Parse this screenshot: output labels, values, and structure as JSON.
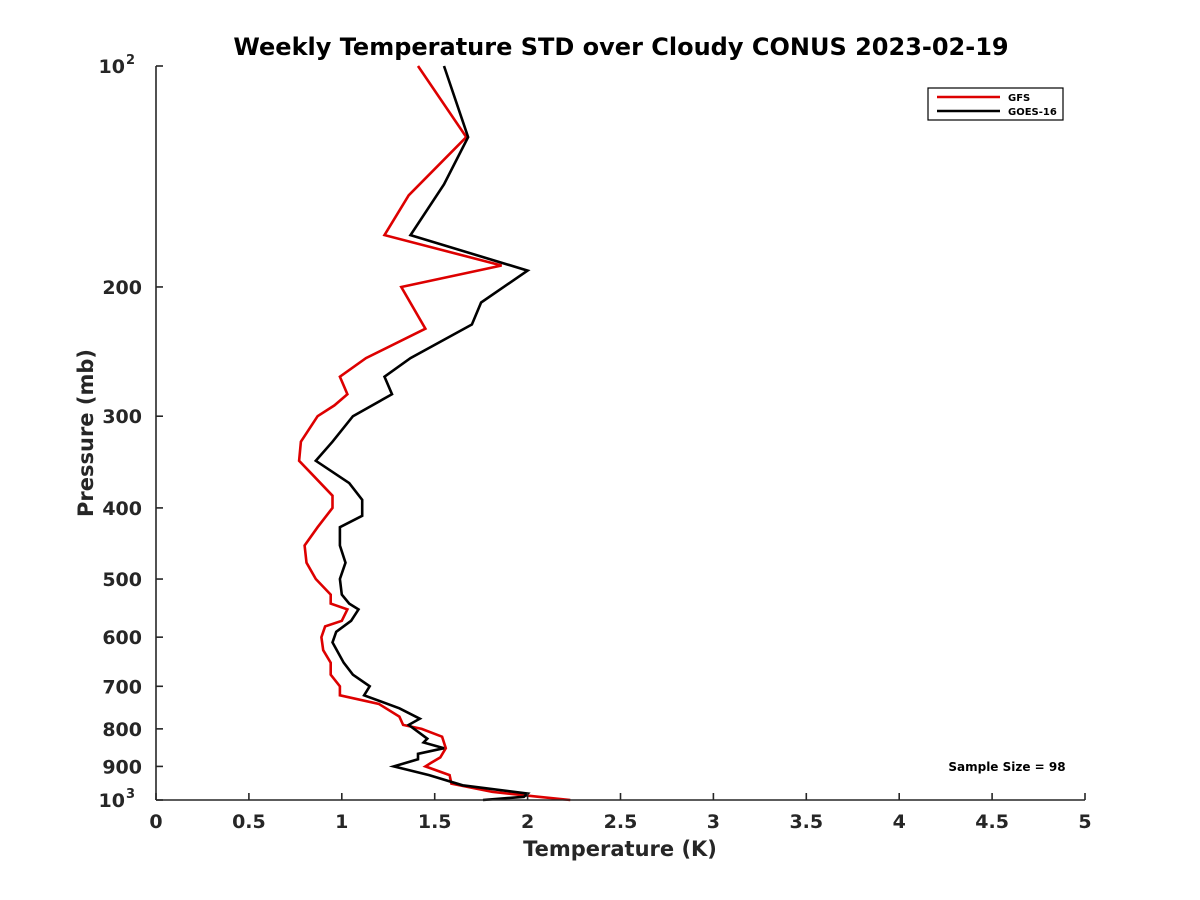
{
  "chart_data": {
    "type": "line",
    "title": "Weekly Temperature STD over Cloudy CONUS 2023-02-19",
    "xlabel": "Temperature (K)",
    "ylabel": "Pressure (mb)",
    "xlim": [
      0,
      5
    ],
    "ylim": [
      1000,
      100
    ],
    "y_scale": "log",
    "y_reversed": true,
    "x_ticks": [
      "0",
      "0.5",
      "1",
      "1.5",
      "2",
      "2.5",
      "3",
      "3.5",
      "4",
      "4.5",
      "5"
    ],
    "y_ticks": [
      {
        "value": 100,
        "base": "10",
        "exp": "2"
      },
      {
        "value": 200,
        "label": "200"
      },
      {
        "value": 300,
        "label": "300"
      },
      {
        "value": 400,
        "label": "400"
      },
      {
        "value": 500,
        "label": "500"
      },
      {
        "value": 600,
        "label": "600"
      },
      {
        "value": 700,
        "label": "700"
      },
      {
        "value": 800,
        "label": "800"
      },
      {
        "value": 900,
        "label": "900"
      },
      {
        "value": 1000,
        "base": "10",
        "exp": "3"
      }
    ],
    "grid": false,
    "legend_position": "top-right",
    "annotation": "Sample Size = 98",
    "series": [
      {
        "name": "GFS",
        "color": "#dd0000",
        "points": [
          [
            1.41,
            100
          ],
          [
            1.67,
            125
          ],
          [
            1.36,
            150
          ],
          [
            1.23,
            170
          ],
          [
            1.86,
            187
          ],
          [
            1.32,
            200
          ],
          [
            1.45,
            228
          ],
          [
            1.13,
            250
          ],
          [
            0.99,
            265
          ],
          [
            1.03,
            280
          ],
          [
            0.96,
            290
          ],
          [
            0.87,
            300
          ],
          [
            0.78,
            325
          ],
          [
            0.77,
            345
          ],
          [
            0.84,
            360
          ],
          [
            0.95,
            385
          ],
          [
            0.95,
            400
          ],
          [
            0.87,
            425
          ],
          [
            0.8,
            450
          ],
          [
            0.81,
            475
          ],
          [
            0.86,
            500
          ],
          [
            0.94,
            525
          ],
          [
            0.94,
            540
          ],
          [
            1.03,
            550
          ],
          [
            1.0,
            570
          ],
          [
            0.91,
            580
          ],
          [
            0.89,
            600
          ],
          [
            0.9,
            625
          ],
          [
            0.94,
            650
          ],
          [
            0.94,
            675
          ],
          [
            0.99,
            700
          ],
          [
            0.99,
            720
          ],
          [
            1.2,
            740
          ],
          [
            1.31,
            770
          ],
          [
            1.33,
            790
          ],
          [
            1.43,
            800
          ],
          [
            1.54,
            820
          ],
          [
            1.56,
            850
          ],
          [
            1.53,
            875
          ],
          [
            1.48,
            890
          ],
          [
            1.45,
            900
          ],
          [
            1.58,
            925
          ],
          [
            1.59,
            950
          ],
          [
            1.81,
            975
          ],
          [
            2.06,
            990
          ],
          [
            2.23,
            1000
          ]
        ]
      },
      {
        "name": "GOES-16",
        "color": "#000000",
        "points": [
          [
            1.55,
            100
          ],
          [
            1.68,
            125
          ],
          [
            1.55,
            145
          ],
          [
            1.37,
            170
          ],
          [
            2.0,
            190
          ],
          [
            1.75,
            210
          ],
          [
            1.7,
            225
          ],
          [
            1.37,
            250
          ],
          [
            1.23,
            265
          ],
          [
            1.27,
            280
          ],
          [
            1.06,
            300
          ],
          [
            0.95,
            325
          ],
          [
            0.86,
            345
          ],
          [
            1.04,
            370
          ],
          [
            1.11,
            390
          ],
          [
            1.11,
            410
          ],
          [
            0.99,
            425
          ],
          [
            0.99,
            450
          ],
          [
            1.02,
            475
          ],
          [
            0.99,
            500
          ],
          [
            1.0,
            525
          ],
          [
            1.04,
            540
          ],
          [
            1.09,
            550
          ],
          [
            1.05,
            570
          ],
          [
            0.97,
            590
          ],
          [
            0.95,
            610
          ],
          [
            1.01,
            650
          ],
          [
            1.06,
            675
          ],
          [
            1.15,
            700
          ],
          [
            1.12,
            720
          ],
          [
            1.31,
            750
          ],
          [
            1.42,
            775
          ],
          [
            1.36,
            790
          ],
          [
            1.46,
            825
          ],
          [
            1.44,
            835
          ],
          [
            1.55,
            850
          ],
          [
            1.41,
            865
          ],
          [
            1.41,
            880
          ],
          [
            1.28,
            900
          ],
          [
            1.47,
            925
          ],
          [
            1.65,
            955
          ],
          [
            2.0,
            980
          ],
          [
            1.98,
            990
          ],
          [
            1.76,
            1000
          ]
        ]
      }
    ]
  }
}
